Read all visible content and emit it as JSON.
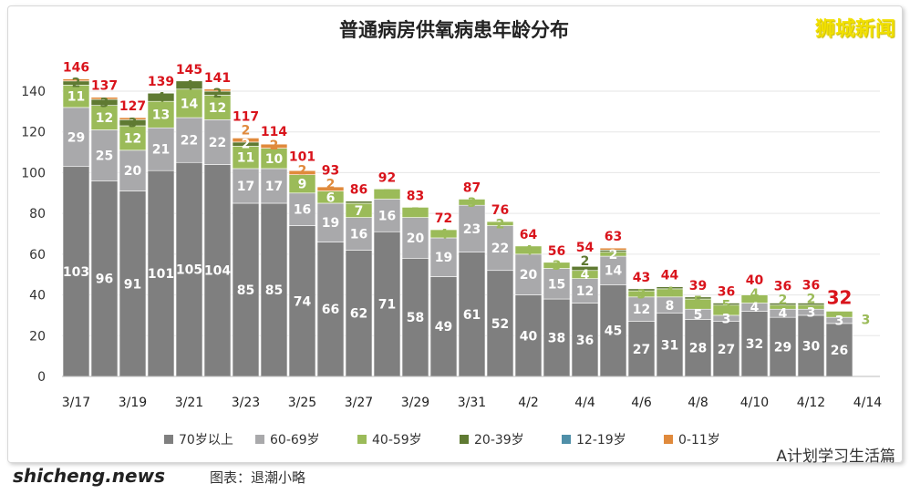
{
  "chart_data": {
    "type": "bar",
    "stacked": true,
    "title": "普通病房供氧病患年龄分布",
    "xlabel": "",
    "ylabel": "",
    "ylim": [
      0,
      150
    ],
    "yticks": [
      0,
      20,
      40,
      60,
      80,
      100,
      120,
      140
    ],
    "grid": true,
    "legend_position": "bottom",
    "categories": [
      "3/17",
      "3/18",
      "3/19",
      "3/20",
      "3/21",
      "3/22",
      "3/23",
      "3/24",
      "3/25",
      "3/26",
      "3/27",
      "3/28",
      "3/29",
      "3/30",
      "3/31",
      "4/1",
      "4/2",
      "4/3",
      "4/4",
      "4/5",
      "4/6",
      "4/7",
      "4/8",
      "4/9",
      "4/10",
      "4/11",
      "4/12",
      "4/13"
    ],
    "xtick_labels": [
      "3/17",
      "3/19",
      "3/21",
      "3/23",
      "3/25",
      "3/27",
      "3/29",
      "3/31",
      "4/2",
      "4/4",
      "4/6",
      "4/8",
      "4/10",
      "4/12",
      "4/14"
    ],
    "totals": [
      146,
      137,
      127,
      139,
      145,
      141,
      117,
      114,
      101,
      93,
      86,
      92,
      83,
      72,
      87,
      76,
      64,
      56,
      54,
      63,
      43,
      44,
      39,
      36,
      40,
      36,
      36,
      32
    ],
    "series": [
      {
        "name": "70岁以上",
        "color": "#7f7f7f",
        "values": [
          103,
          96,
          91,
          101,
          105,
          104,
          85,
          85,
          74,
          66,
          62,
          71,
          58,
          49,
          61,
          52,
          40,
          38,
          36,
          45,
          27,
          31,
          28,
          27,
          32,
          29,
          30,
          26
        ]
      },
      {
        "name": "60-69岁",
        "color": "#a9a9ab",
        "values": [
          29,
          25,
          20,
          21,
          22,
          22,
          17,
          17,
          16,
          19,
          16,
          16,
          20,
          19,
          23,
          22,
          20,
          15,
          12,
          14,
          12,
          8,
          5,
          3,
          4,
          4,
          3,
          3
        ]
      },
      {
        "name": "40-59岁",
        "color": "#9bbb59",
        "values": [
          11,
          12,
          12,
          13,
          14,
          12,
          11,
          10,
          9,
          6,
          7,
          5,
          5,
          4,
          3,
          2,
          4,
          3,
          4,
          2,
          3,
          4,
          5,
          5,
          4,
          2,
          2,
          3
        ]
      },
      {
        "name": "20-39岁",
        "color": "#5f7a32",
        "values": [
          2,
          3,
          3,
          4,
          4,
          2,
          2,
          0,
          0,
          0,
          1,
          0,
          0,
          0,
          0,
          0,
          0,
          0,
          2,
          1,
          1,
          1,
          1,
          1,
          0,
          1,
          1,
          0
        ]
      },
      {
        "name": "12-19岁",
        "color": "#4f8fa8",
        "values": [
          0,
          0,
          0,
          0,
          0,
          0,
          0,
          0,
          0,
          0,
          0,
          0,
          0,
          0,
          0,
          0,
          0,
          0,
          0,
          0,
          0,
          0,
          0,
          0,
          0,
          0,
          0,
          0
        ]
      },
      {
        "name": "0-11岁",
        "color": "#e08a3c",
        "values": [
          1,
          1,
          1,
          0,
          0,
          1,
          2,
          2,
          2,
          2,
          0,
          0,
          0,
          0,
          0,
          0,
          0,
          0,
          0,
          1,
          0,
          0,
          0,
          0,
          0,
          0,
          0,
          0
        ]
      }
    ],
    "total_label_color": "#d9141c"
  },
  "watermark": "狮城新闻",
  "site": "shicheng.news",
  "credit": "图表：退潮小略",
  "wechat": "A计划学习生活篇"
}
